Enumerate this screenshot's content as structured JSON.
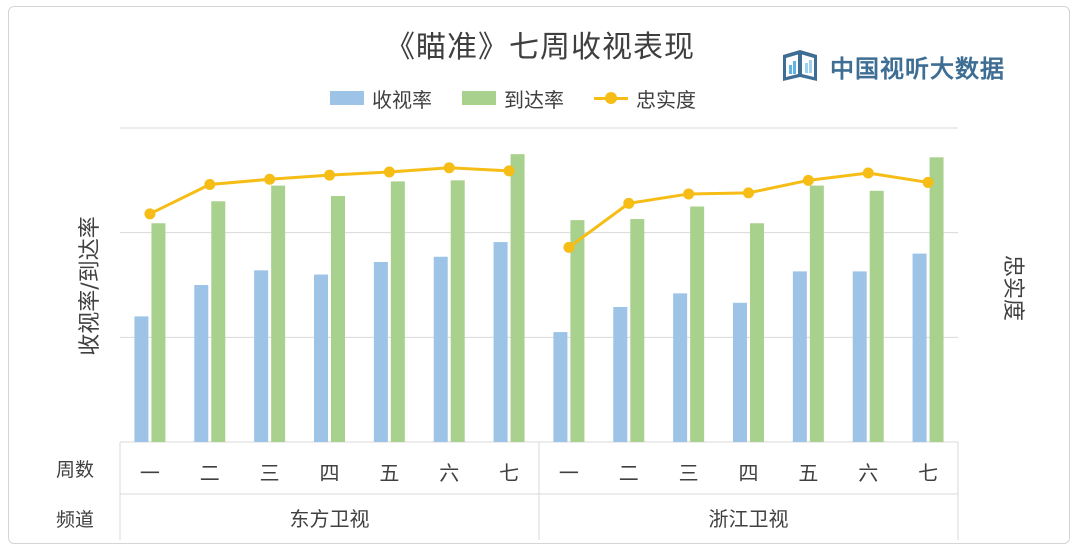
{
  "title": "《瞄准》七周收视表现",
  "brand": {
    "name": "中国视听大数据",
    "icon": "chart-book-logo-icon"
  },
  "legend": [
    {
      "label": "收视率",
      "color": "#9dc3e6",
      "kind": "bar"
    },
    {
      "label": "到达率",
      "color": "#a9d18e",
      "kind": "bar"
    },
    {
      "label": "忠实度",
      "color": "#f5bd16",
      "kind": "line"
    }
  ],
  "axes": {
    "left_label": "收视率/到达率",
    "right_label": "忠实度",
    "row_labels": {
      "week": "周数",
      "channel": "频道"
    }
  },
  "chart_data": {
    "type": "bar",
    "title": "《瞄准》七周收视表现",
    "ylabel": "收视率/到达率",
    "y2label": "忠实度",
    "ylim": [
      0,
      3
    ],
    "y2lim": [
      0,
      3
    ],
    "grid": true,
    "legend_position": "top",
    "axis_tick_labels_visible": false,
    "groups": [
      {
        "channel": "东方卫视",
        "categories": [
          "一",
          "二",
          "三",
          "四",
          "五",
          "六",
          "七"
        ],
        "series": [
          {
            "name": "收视率",
            "type": "bar",
            "values": [
              1.2,
              1.5,
              1.64,
              1.6,
              1.72,
              1.77,
              1.91
            ]
          },
          {
            "name": "到达率",
            "type": "bar",
            "values": [
              2.09,
              2.3,
              2.45,
              2.35,
              2.49,
              2.5,
              2.75
            ]
          },
          {
            "name": "忠实度",
            "type": "line",
            "values": [
              2.18,
              2.46,
              2.51,
              2.55,
              2.58,
              2.62,
              2.59
            ]
          }
        ]
      },
      {
        "channel": "浙江卫视",
        "categories": [
          "一",
          "二",
          "三",
          "四",
          "五",
          "六",
          "七"
        ],
        "series": [
          {
            "name": "收视率",
            "type": "bar",
            "values": [
              1.05,
              1.29,
              1.42,
              1.33,
              1.63,
              1.63,
              1.8
            ]
          },
          {
            "name": "到达率",
            "type": "bar",
            "values": [
              2.12,
              2.13,
              2.25,
              2.09,
              2.45,
              2.4,
              2.72
            ]
          },
          {
            "name": "忠实度",
            "type": "line",
            "values": [
              1.86,
              2.28,
              2.37,
              2.38,
              2.5,
              2.57,
              2.48
            ]
          }
        ]
      }
    ]
  }
}
